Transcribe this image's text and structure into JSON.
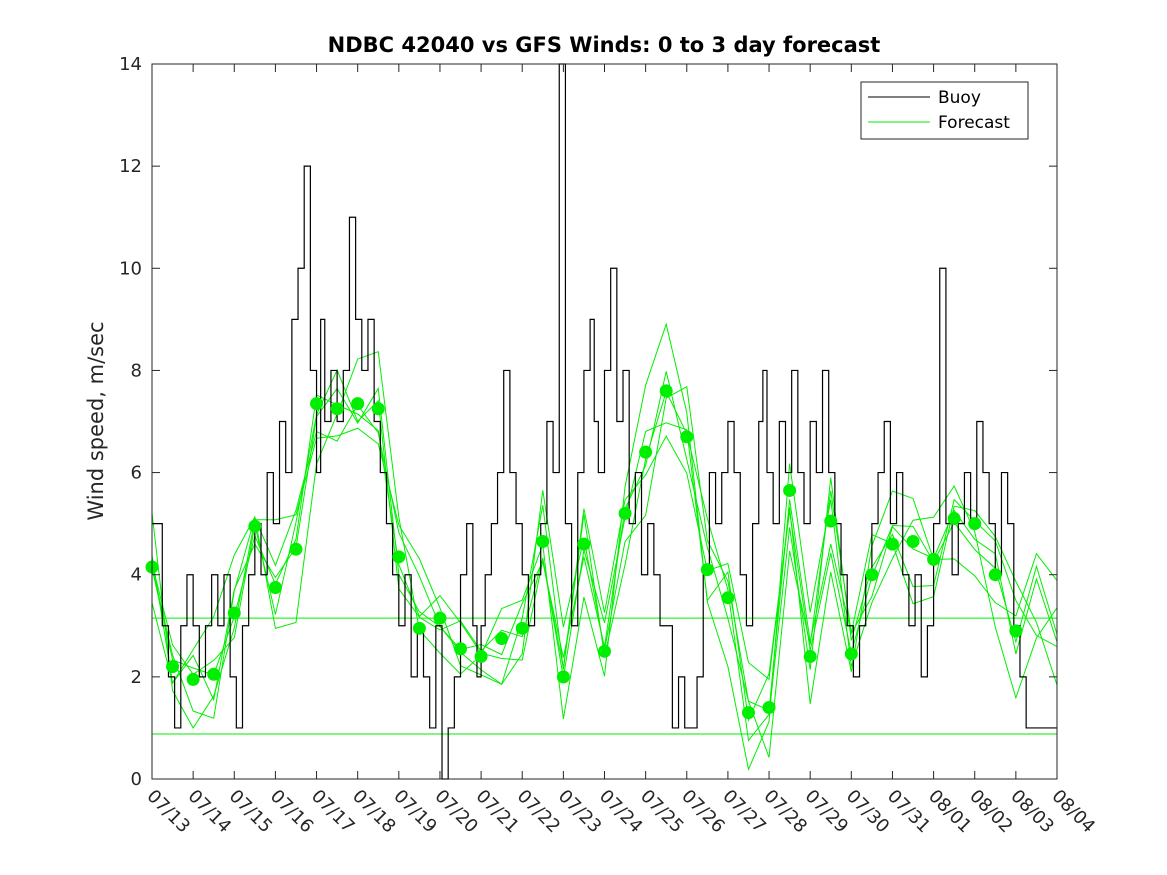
{
  "chart_data": {
    "type": "line",
    "title": "NDBC 42040 vs GFS Winds: 0 to 3 day forecast",
    "xlabel": "",
    "ylabel": "Wind speed, m/sec",
    "ylim": [
      0,
      14
    ],
    "yticks": [
      0,
      2,
      4,
      6,
      8,
      10,
      12,
      14
    ],
    "xlim": [
      0,
      22
    ],
    "x_unit": "days from 07/13",
    "xtick_labels": [
      "07/13",
      "07/14",
      "07/15",
      "07/16",
      "07/17",
      "07/18",
      "07/19",
      "07/20",
      "07/21",
      "07/22",
      "07/23",
      "07/24",
      "07/25",
      "07/26",
      "07/27",
      "07/28",
      "07/29",
      "07/30",
      "07/31",
      "08/01",
      "08/02",
      "08/03",
      "08/04"
    ],
    "grid": false,
    "legend": {
      "location": "top-right",
      "entries": [
        {
          "label": "Buoy",
          "color": "#000000"
        },
        {
          "label": "Forecast",
          "color": "#00ee00"
        }
      ]
    },
    "colors": {
      "buoy": "#000000",
      "forecast": "#00ee00",
      "markers": "#00ee00"
    },
    "buoy": {
      "name": "Buoy",
      "x": [
        0,
        0.1,
        0.25,
        0.4,
        0.55,
        0.7,
        0.85,
        1.0,
        1.15,
        1.3,
        1.45,
        1.6,
        1.75,
        1.9,
        2.05,
        2.2,
        2.35,
        2.5,
        2.65,
        2.8,
        2.95,
        3.1,
        3.25,
        3.4,
        3.55,
        3.7,
        3.85,
        4.0,
        4.1,
        4.2,
        4.35,
        4.5,
        4.65,
        4.8,
        4.95,
        5.1,
        5.25,
        5.4,
        5.55,
        5.7,
        5.85,
        6.0,
        6.15,
        6.3,
        6.45,
        6.6,
        6.75,
        6.9,
        7.05,
        7.2,
        7.35,
        7.5,
        7.65,
        7.8,
        7.9,
        8.0,
        8.1,
        8.25,
        8.4,
        8.55,
        8.7,
        8.85,
        9.0,
        9.15,
        9.3,
        9.45,
        9.6,
        9.75,
        9.9,
        10.05,
        10.2,
        10.35,
        10.5,
        10.65,
        10.75,
        10.85,
        11.0,
        11.15,
        11.3,
        11.45,
        11.6,
        11.75,
        11.9,
        12.05,
        12.2,
        12.35,
        12.5,
        12.65,
        12.8,
        12.95,
        13.1,
        13.25,
        13.4,
        13.55,
        13.7,
        13.85,
        14.0,
        14.15,
        14.3,
        14.45,
        14.6,
        14.75,
        14.85,
        14.95,
        15.1,
        15.25,
        15.4,
        15.55,
        15.7,
        15.85,
        16.0,
        16.15,
        16.3,
        16.45,
        16.6,
        16.75,
        16.9,
        17.05,
        17.2,
        17.35,
        17.5,
        17.65,
        17.8,
        17.95,
        18.1,
        18.25,
        18.4,
        18.55,
        18.7,
        18.85,
        19.0,
        19.15,
        19.3,
        19.45,
        19.6,
        19.75,
        19.9,
        20.05,
        20.2,
        20.35,
        20.5,
        20.65,
        20.8,
        20.95,
        21.1,
        21.25,
        21.4,
        21.55,
        21.7,
        21.85,
        22.0
      ],
      "values": [
        5,
        5,
        3,
        2,
        1,
        3,
        4,
        3,
        2,
        3,
        4,
        3,
        4,
        2,
        1,
        3,
        4,
        5,
        4,
        6,
        5,
        7,
        6,
        9,
        10,
        12,
        8,
        6,
        9,
        7,
        8,
        7,
        8,
        11,
        9,
        8,
        9,
        7,
        6,
        5,
        4,
        3,
        4,
        2,
        3,
        2,
        1,
        3,
        0,
        1,
        2,
        4,
        5,
        3,
        2,
        3,
        4,
        5,
        6,
        8,
        6,
        5,
        4,
        3,
        4,
        5,
        7,
        6,
        14,
        5,
        3,
        6,
        8,
        9,
        7,
        6,
        8,
        10,
        7,
        8,
        5,
        6,
        4,
        5,
        4,
        3,
        3,
        1,
        2,
        1,
        1,
        2,
        4,
        6,
        5,
        6,
        7,
        6,
        4,
        3,
        5,
        7,
        8,
        6,
        5,
        7,
        6,
        8,
        6,
        5,
        7,
        6,
        8,
        6,
        5,
        4,
        3,
        2,
        3,
        4,
        5,
        6,
        7,
        5,
        6,
        4,
        3,
        4,
        2,
        3,
        5,
        10,
        5,
        4,
        5,
        6,
        5,
        7,
        6,
        5,
        4,
        6,
        5,
        3,
        2,
        1,
        1,
        1,
        1,
        1,
        1
      ]
    },
    "forecast": {
      "name": "Forecast",
      "x": [
        0,
        0.5,
        1,
        1.5,
        2,
        2.5,
        3,
        3.5,
        4,
        4.5,
        5,
        5.5,
        6,
        6.5,
        7,
        7.5,
        8,
        8.5,
        9,
        9.5,
        10,
        10.5,
        11,
        11.5,
        12,
        12.5,
        13,
        13.5,
        14,
        14.5,
        15,
        15.5,
        16,
        16.5,
        17,
        17.5,
        18,
        18.5,
        19,
        19.5,
        20,
        20.5,
        21,
        21.5,
        22
      ],
      "values": [
        4.2,
        2.2,
        2.0,
        2.0,
        3.3,
        4.9,
        3.8,
        4.5,
        7.3,
        7.3,
        7.4,
        7.2,
        4.4,
        3.0,
        3.1,
        2.6,
        2.4,
        2.8,
        3.0,
        4.7,
        2.0,
        4.6,
        2.5,
        5.2,
        6.4,
        7.6,
        6.7,
        4.1,
        3.5,
        1.3,
        1.4,
        5.6,
        2.4,
        5.0,
        2.4,
        4.0,
        4.6,
        4.7,
        4.3,
        5.1,
        5.0,
        4.0,
        2.9,
        3.5,
        3.0
      ],
      "ensemble_offsets": [
        0,
        0.6,
        -0.6,
        1.0,
        -0.9,
        0.3
      ],
      "reference_lines": [
        3.15,
        0.88
      ]
    },
    "markers": {
      "x": [
        0,
        0.5,
        1,
        1.5,
        2,
        2.5,
        3,
        3.5,
        4,
        4.5,
        5,
        5.5,
        6,
        6.5,
        7,
        7.5,
        8,
        8.5,
        9,
        9.5,
        10,
        10.5,
        11,
        11.5,
        12,
        12.5,
        13,
        13.5,
        14,
        14.5,
        15,
        15.5,
        16,
        16.5,
        17,
        17.5,
        18,
        18.5,
        19,
        19.5,
        20,
        20.5,
        21
      ],
      "values": [
        4.15,
        2.2,
        1.95,
        2.05,
        3.25,
        4.95,
        3.75,
        4.5,
        7.35,
        7.25,
        7.35,
        7.25,
        4.35,
        2.95,
        3.15,
        2.55,
        2.4,
        2.75,
        2.95,
        4.65,
        2.0,
        4.6,
        2.5,
        5.2,
        6.4,
        7.6,
        6.7,
        4.1,
        3.55,
        1.3,
        1.4,
        5.65,
        2.4,
        5.05,
        2.45,
        4.0,
        4.6,
        4.65,
        4.3,
        5.1,
        5.0,
        4.0,
        2.9
      ]
    }
  }
}
